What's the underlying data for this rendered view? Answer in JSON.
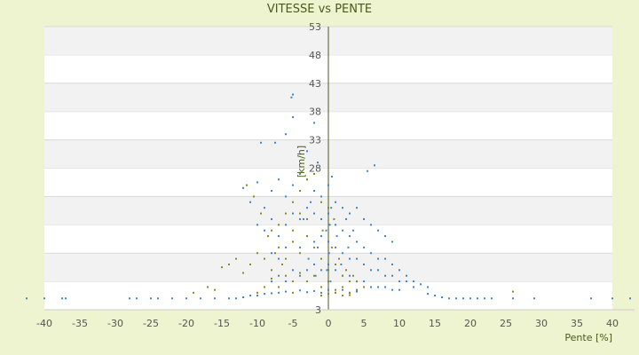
{
  "chart_data": {
    "type": "scatter",
    "title": "VITESSE vs PENTE",
    "xlabel": "Pente [%]",
    "ylabel": "[km/h]",
    "xlim": [
      -40,
      40
    ],
    "ylim": [
      3,
      53
    ],
    "x_ticks": [
      -40,
      -35,
      -30,
      -25,
      -20,
      -15,
      -10,
      -5,
      0,
      5,
      10,
      15,
      20,
      25,
      30,
      35,
      40
    ],
    "y_ticks": [
      3,
      8,
      13,
      18,
      23,
      28,
      33,
      38,
      43,
      48,
      53
    ],
    "y_tick_labels": [
      "3",
      "",
      "",
      "",
      "",
      "28",
      "33",
      "38",
      "43",
      "48",
      "53"
    ],
    "grid": "horizontal alternating bands",
    "legend": "none",
    "colors": {
      "series_a": "#3b86cf",
      "series_b": "#8a8a1a",
      "background": "#eef3d0",
      "band": "#f2f2f2",
      "axis": "#4a5a1a"
    },
    "series": [
      {
        "values_xy": [
          [
            -42.5,
            5
          ],
          [
            -40,
            5
          ],
          [
            -37.5,
            5
          ],
          [
            -37,
            5
          ],
          [
            -28,
            5
          ],
          [
            -27,
            5
          ],
          [
            -25,
            5
          ],
          [
            -24,
            5
          ],
          [
            -22,
            5
          ],
          [
            -20,
            5
          ],
          [
            -18,
            5
          ],
          [
            -16,
            5
          ],
          [
            -14,
            5
          ],
          [
            -13,
            5
          ],
          [
            -12,
            5.2
          ],
          [
            -11,
            5.5
          ],
          [
            -10,
            5.5
          ],
          [
            -9,
            5.8
          ],
          [
            40,
            5
          ],
          [
            42.5,
            5
          ],
          [
            37,
            5
          ],
          [
            29,
            5
          ],
          [
            26,
            5
          ],
          [
            23,
            5
          ],
          [
            22,
            5
          ],
          [
            21,
            5
          ],
          [
            20,
            5
          ],
          [
            19,
            5
          ],
          [
            18,
            5
          ],
          [
            17,
            5
          ],
          [
            16,
            5.2
          ],
          [
            15,
            5.5
          ],
          [
            14,
            5.8
          ],
          [
            -5,
            41
          ],
          [
            -5.2,
            40.5
          ],
          [
            -2,
            36
          ],
          [
            -7.5,
            32.5
          ],
          [
            -6,
            34
          ],
          [
            -9.5,
            32.5
          ],
          [
            -5,
            37
          ],
          [
            6.5,
            28.5
          ],
          [
            5.5,
            27.5
          ],
          [
            -3,
            31
          ],
          [
            -1.5,
            29
          ],
          [
            0.5,
            26.5
          ],
          [
            -12,
            24.5
          ],
          [
            -11,
            22
          ],
          [
            -10,
            25.5
          ],
          [
            -9,
            21
          ],
          [
            -8,
            24
          ],
          [
            -7,
            26
          ],
          [
            -6,
            23
          ],
          [
            -5,
            25
          ],
          [
            -4,
            27
          ],
          [
            -3,
            26
          ],
          [
            -2,
            24
          ],
          [
            -1,
            23
          ],
          [
            0,
            25
          ],
          [
            1,
            22
          ],
          [
            2,
            21
          ],
          [
            3,
            20
          ],
          [
            4,
            21
          ],
          [
            5,
            19
          ],
          [
            6,
            18
          ],
          [
            7,
            17
          ],
          [
            8,
            16
          ],
          [
            9,
            15
          ],
          [
            -10,
            18
          ],
          [
            -9,
            17
          ],
          [
            -8,
            19
          ],
          [
            -7,
            16
          ],
          [
            -6,
            18
          ],
          [
            -5,
            20
          ],
          [
            -4,
            19
          ],
          [
            -3,
            21
          ],
          [
            -2,
            20
          ],
          [
            -1,
            19
          ],
          [
            0,
            20
          ],
          [
            1,
            18
          ],
          [
            2,
            17
          ],
          [
            3,
            16
          ],
          [
            4,
            15
          ],
          [
            5,
            14
          ],
          [
            6,
            13
          ],
          [
            7,
            12
          ],
          [
            8,
            12
          ],
          [
            9,
            11
          ],
          [
            10,
            10
          ],
          [
            11,
            9
          ],
          [
            12,
            8
          ],
          [
            13,
            7.5
          ],
          [
            14,
            7
          ],
          [
            -9,
            12
          ],
          [
            -8,
            13
          ],
          [
            -7,
            12
          ],
          [
            -6,
            14
          ],
          [
            -5,
            15
          ],
          [
            -4,
            14
          ],
          [
            -3,
            16
          ],
          [
            -2,
            15
          ],
          [
            -1,
            16
          ],
          [
            0,
            15
          ],
          [
            1,
            14
          ],
          [
            2,
            13
          ],
          [
            3,
            12
          ],
          [
            4,
            12
          ],
          [
            5,
            11
          ],
          [
            6,
            10
          ],
          [
            7,
            10
          ],
          [
            8,
            9
          ],
          [
            9,
            9
          ],
          [
            10,
            8
          ],
          [
            11,
            8
          ],
          [
            12,
            7
          ],
          [
            -8,
            8
          ],
          [
            -7,
            9
          ],
          [
            -6,
            8
          ],
          [
            -5,
            10
          ],
          [
            -4,
            9
          ],
          [
            -3,
            10
          ],
          [
            -2,
            11
          ],
          [
            -1,
            10
          ],
          [
            0,
            11
          ],
          [
            1,
            10
          ],
          [
            2,
            9
          ],
          [
            3,
            9
          ],
          [
            4,
            8
          ],
          [
            5,
            8
          ],
          [
            6,
            7
          ],
          [
            7,
            7
          ],
          [
            8,
            7
          ],
          [
            9,
            6.5
          ],
          [
            10,
            6.5
          ],
          [
            -1,
            6
          ],
          [
            0,
            6.5
          ],
          [
            1,
            6
          ],
          [
            2,
            6.5
          ],
          [
            3,
            6
          ],
          [
            4,
            6.2
          ],
          [
            -2,
            6.3
          ],
          [
            -3,
            6.1
          ],
          [
            -4,
            6.4
          ],
          [
            -6,
            6.2
          ],
          [
            -7,
            6.0
          ],
          [
            -8,
            5.9
          ],
          [
            0.2,
            18
          ],
          [
            0.4,
            21
          ],
          [
            -0.3,
            17
          ],
          [
            0.1,
            13
          ],
          [
            -0.2,
            10
          ],
          [
            0.3,
            8
          ],
          [
            1.2,
            16
          ],
          [
            -1.5,
            14
          ],
          [
            2.5,
            19
          ],
          [
            -2.5,
            22
          ],
          [
            3.5,
            17
          ],
          [
            -3.5,
            19
          ],
          [
            1.8,
            11
          ],
          [
            -1.8,
            9
          ],
          [
            2.8,
            14
          ],
          [
            -2.8,
            12
          ]
        ]
      },
      {
        "values_xy": [
          [
            -15,
            10.5
          ],
          [
            -14,
            11
          ],
          [
            -13,
            12
          ],
          [
            -12,
            9.5
          ],
          [
            -11,
            11
          ],
          [
            -10,
            13
          ],
          [
            -9,
            12
          ],
          [
            -8,
            10
          ],
          [
            -7,
            14
          ],
          [
            -6,
            12
          ],
          [
            -5,
            15
          ],
          [
            -4,
            13
          ],
          [
            -3,
            16
          ],
          [
            -2,
            14
          ],
          [
            -1,
            12
          ],
          [
            0,
            10
          ],
          [
            1,
            11
          ],
          [
            2,
            9
          ],
          [
            3,
            8
          ],
          [
            4,
            8
          ],
          [
            5,
            7
          ],
          [
            -9,
            7
          ],
          [
            -8,
            8.5
          ],
          [
            -7,
            7
          ],
          [
            -6,
            9
          ],
          [
            -5,
            8
          ],
          [
            -4,
            9.5
          ],
          [
            -3,
            8
          ],
          [
            -2,
            9
          ],
          [
            -1,
            7
          ],
          [
            0,
            8
          ],
          [
            1,
            6.5
          ],
          [
            2,
            7
          ],
          [
            3,
            6
          ],
          [
            4,
            6.5
          ],
          [
            -6,
            20
          ],
          [
            -5,
            22
          ],
          [
            -4,
            24
          ],
          [
            -3,
            26
          ],
          [
            -2,
            27
          ],
          [
            -1,
            22
          ],
          [
            0,
            21
          ],
          [
            -7,
            18
          ],
          [
            -8,
            17
          ],
          [
            -5,
            17
          ],
          [
            -4,
            20
          ],
          [
            -3,
            19
          ],
          [
            -19,
            6
          ],
          [
            -17,
            7
          ],
          [
            -16,
            6.5
          ],
          [
            26,
            6.2
          ],
          [
            -10,
            6
          ],
          [
            -5,
            6
          ],
          [
            0,
            5.8
          ],
          [
            2,
            5.5
          ],
          [
            -1,
            5.5
          ],
          [
            1,
            6
          ],
          [
            3,
            5.6
          ],
          [
            -11.5,
            25
          ],
          [
            -10.5,
            23
          ],
          [
            -9.5,
            20
          ],
          [
            -8.5,
            16
          ],
          [
            -7.5,
            13
          ],
          [
            -6.5,
            11
          ],
          [
            0.5,
            14
          ],
          [
            1.5,
            12
          ],
          [
            2.5,
            10
          ],
          [
            3.5,
            9
          ],
          [
            0.8,
            19
          ],
          [
            -0.8,
            17
          ]
        ]
      }
    ]
  }
}
